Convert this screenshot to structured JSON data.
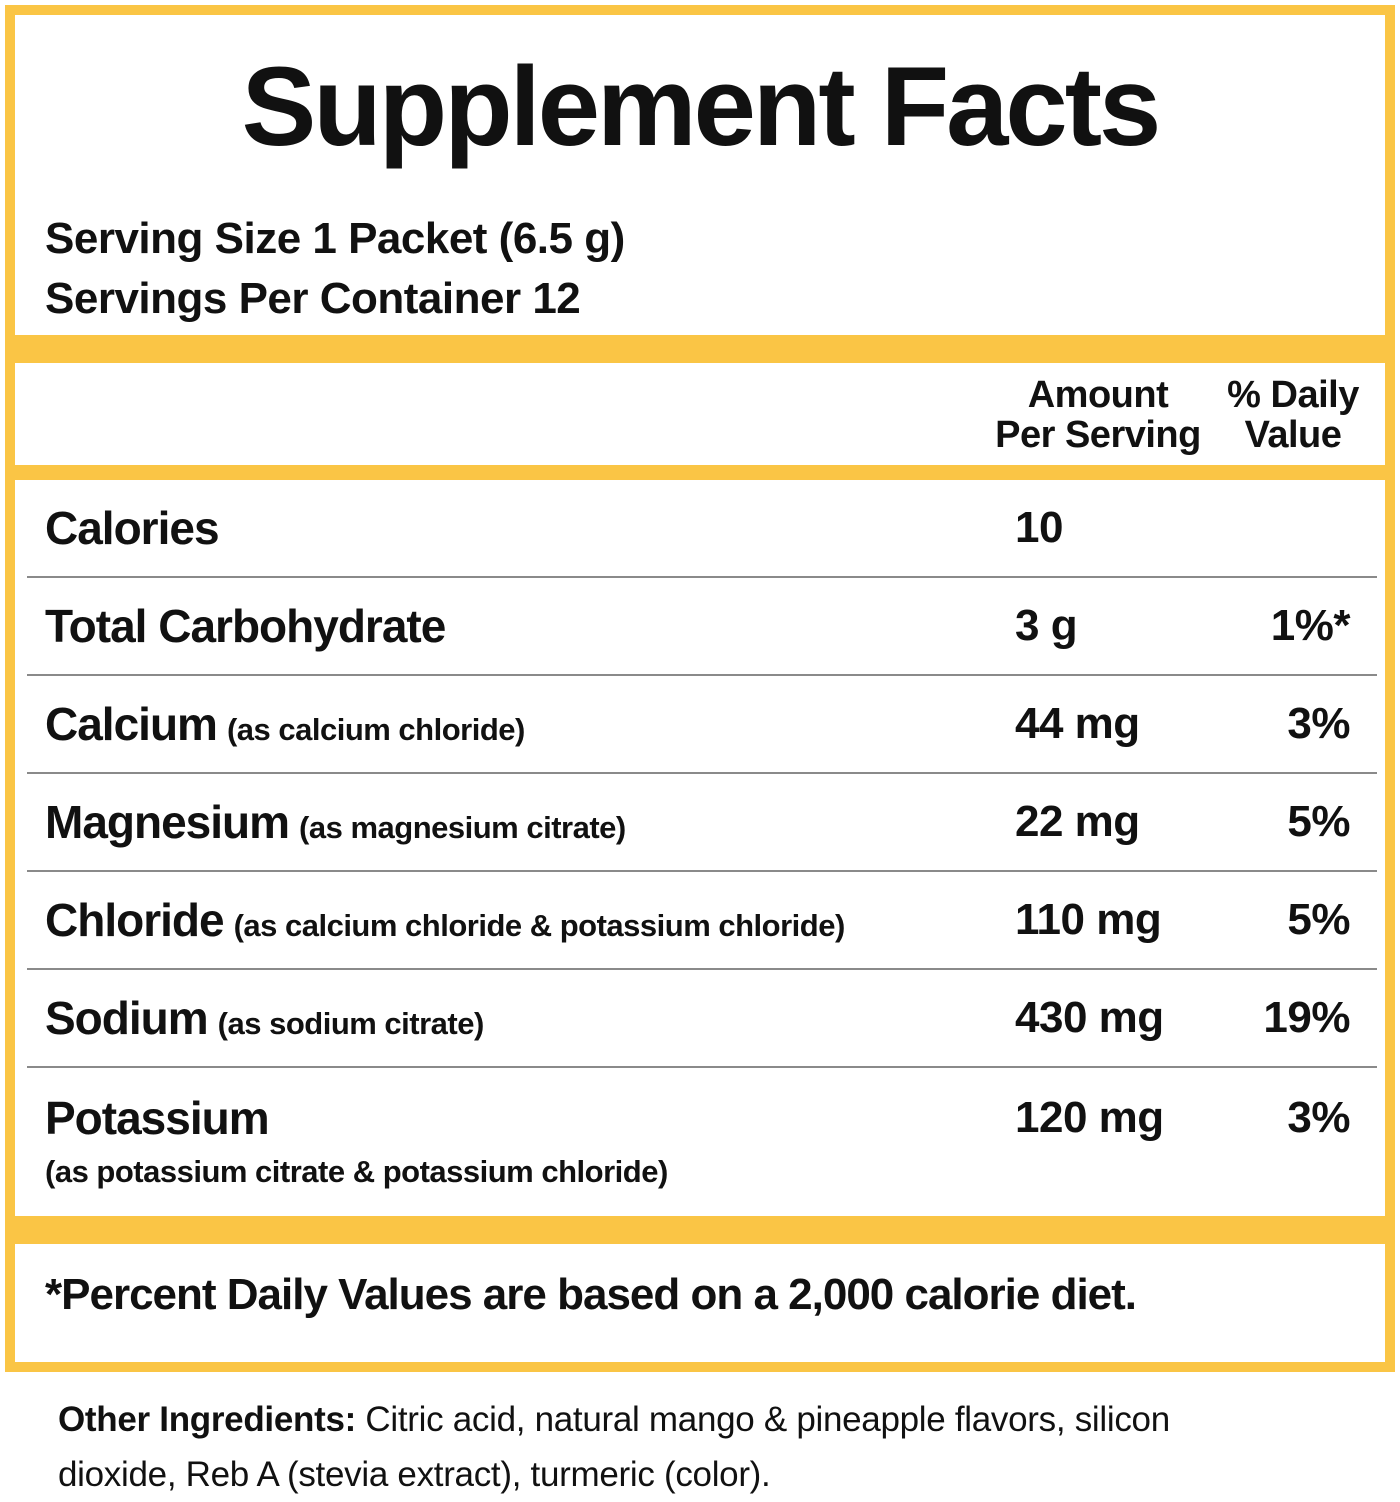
{
  "panel": {
    "title": "Supplement Facts",
    "serving_size": "Serving Size 1 Packet (6.5 g)",
    "servings_per_container": "Servings Per Container 12",
    "columns": {
      "amount_line1": "Amount",
      "amount_line2": "Per Serving",
      "dv_line1": "% Daily",
      "dv_line2": "Value"
    },
    "rows": [
      {
        "name": "Calories",
        "sub": "",
        "amount": "10",
        "daily_value": ""
      },
      {
        "name": "Total Carbohydrate",
        "sub": "",
        "amount": "3 g",
        "daily_value": "1%*"
      },
      {
        "name": "Calcium",
        "sub": "(as calcium chloride)",
        "amount": "44 mg",
        "daily_value": "3%"
      },
      {
        "name": "Magnesium",
        "sub": "(as magnesium citrate)",
        "amount": "22 mg",
        "daily_value": "5%"
      },
      {
        "name": "Chloride",
        "sub": "(as calcium chloride & potassium chloride)",
        "amount": "110 mg",
        "daily_value": "5%"
      },
      {
        "name": "Sodium",
        "sub": "(as sodium citrate)",
        "amount": "430 mg",
        "daily_value": "19%"
      },
      {
        "name": "Potassium",
        "sub": "",
        "sub_below": "(as potassium citrate & potassium chloride)",
        "amount": "120 mg",
        "daily_value": "3%"
      }
    ],
    "footnote": "*Percent Daily Values are based on a 2,000 calorie diet."
  },
  "other_ingredients": {
    "label": "Other Ingredients:",
    "line1": " Citric acid, natural mango & pineapple flavors, silicon",
    "line2": "dioxide, Reb A (stevia extract), turmeric (color)."
  },
  "colors": {
    "accent_yellow": "#FAC545",
    "separator_gray": "#8A8A8A",
    "text_black": "#111111"
  }
}
